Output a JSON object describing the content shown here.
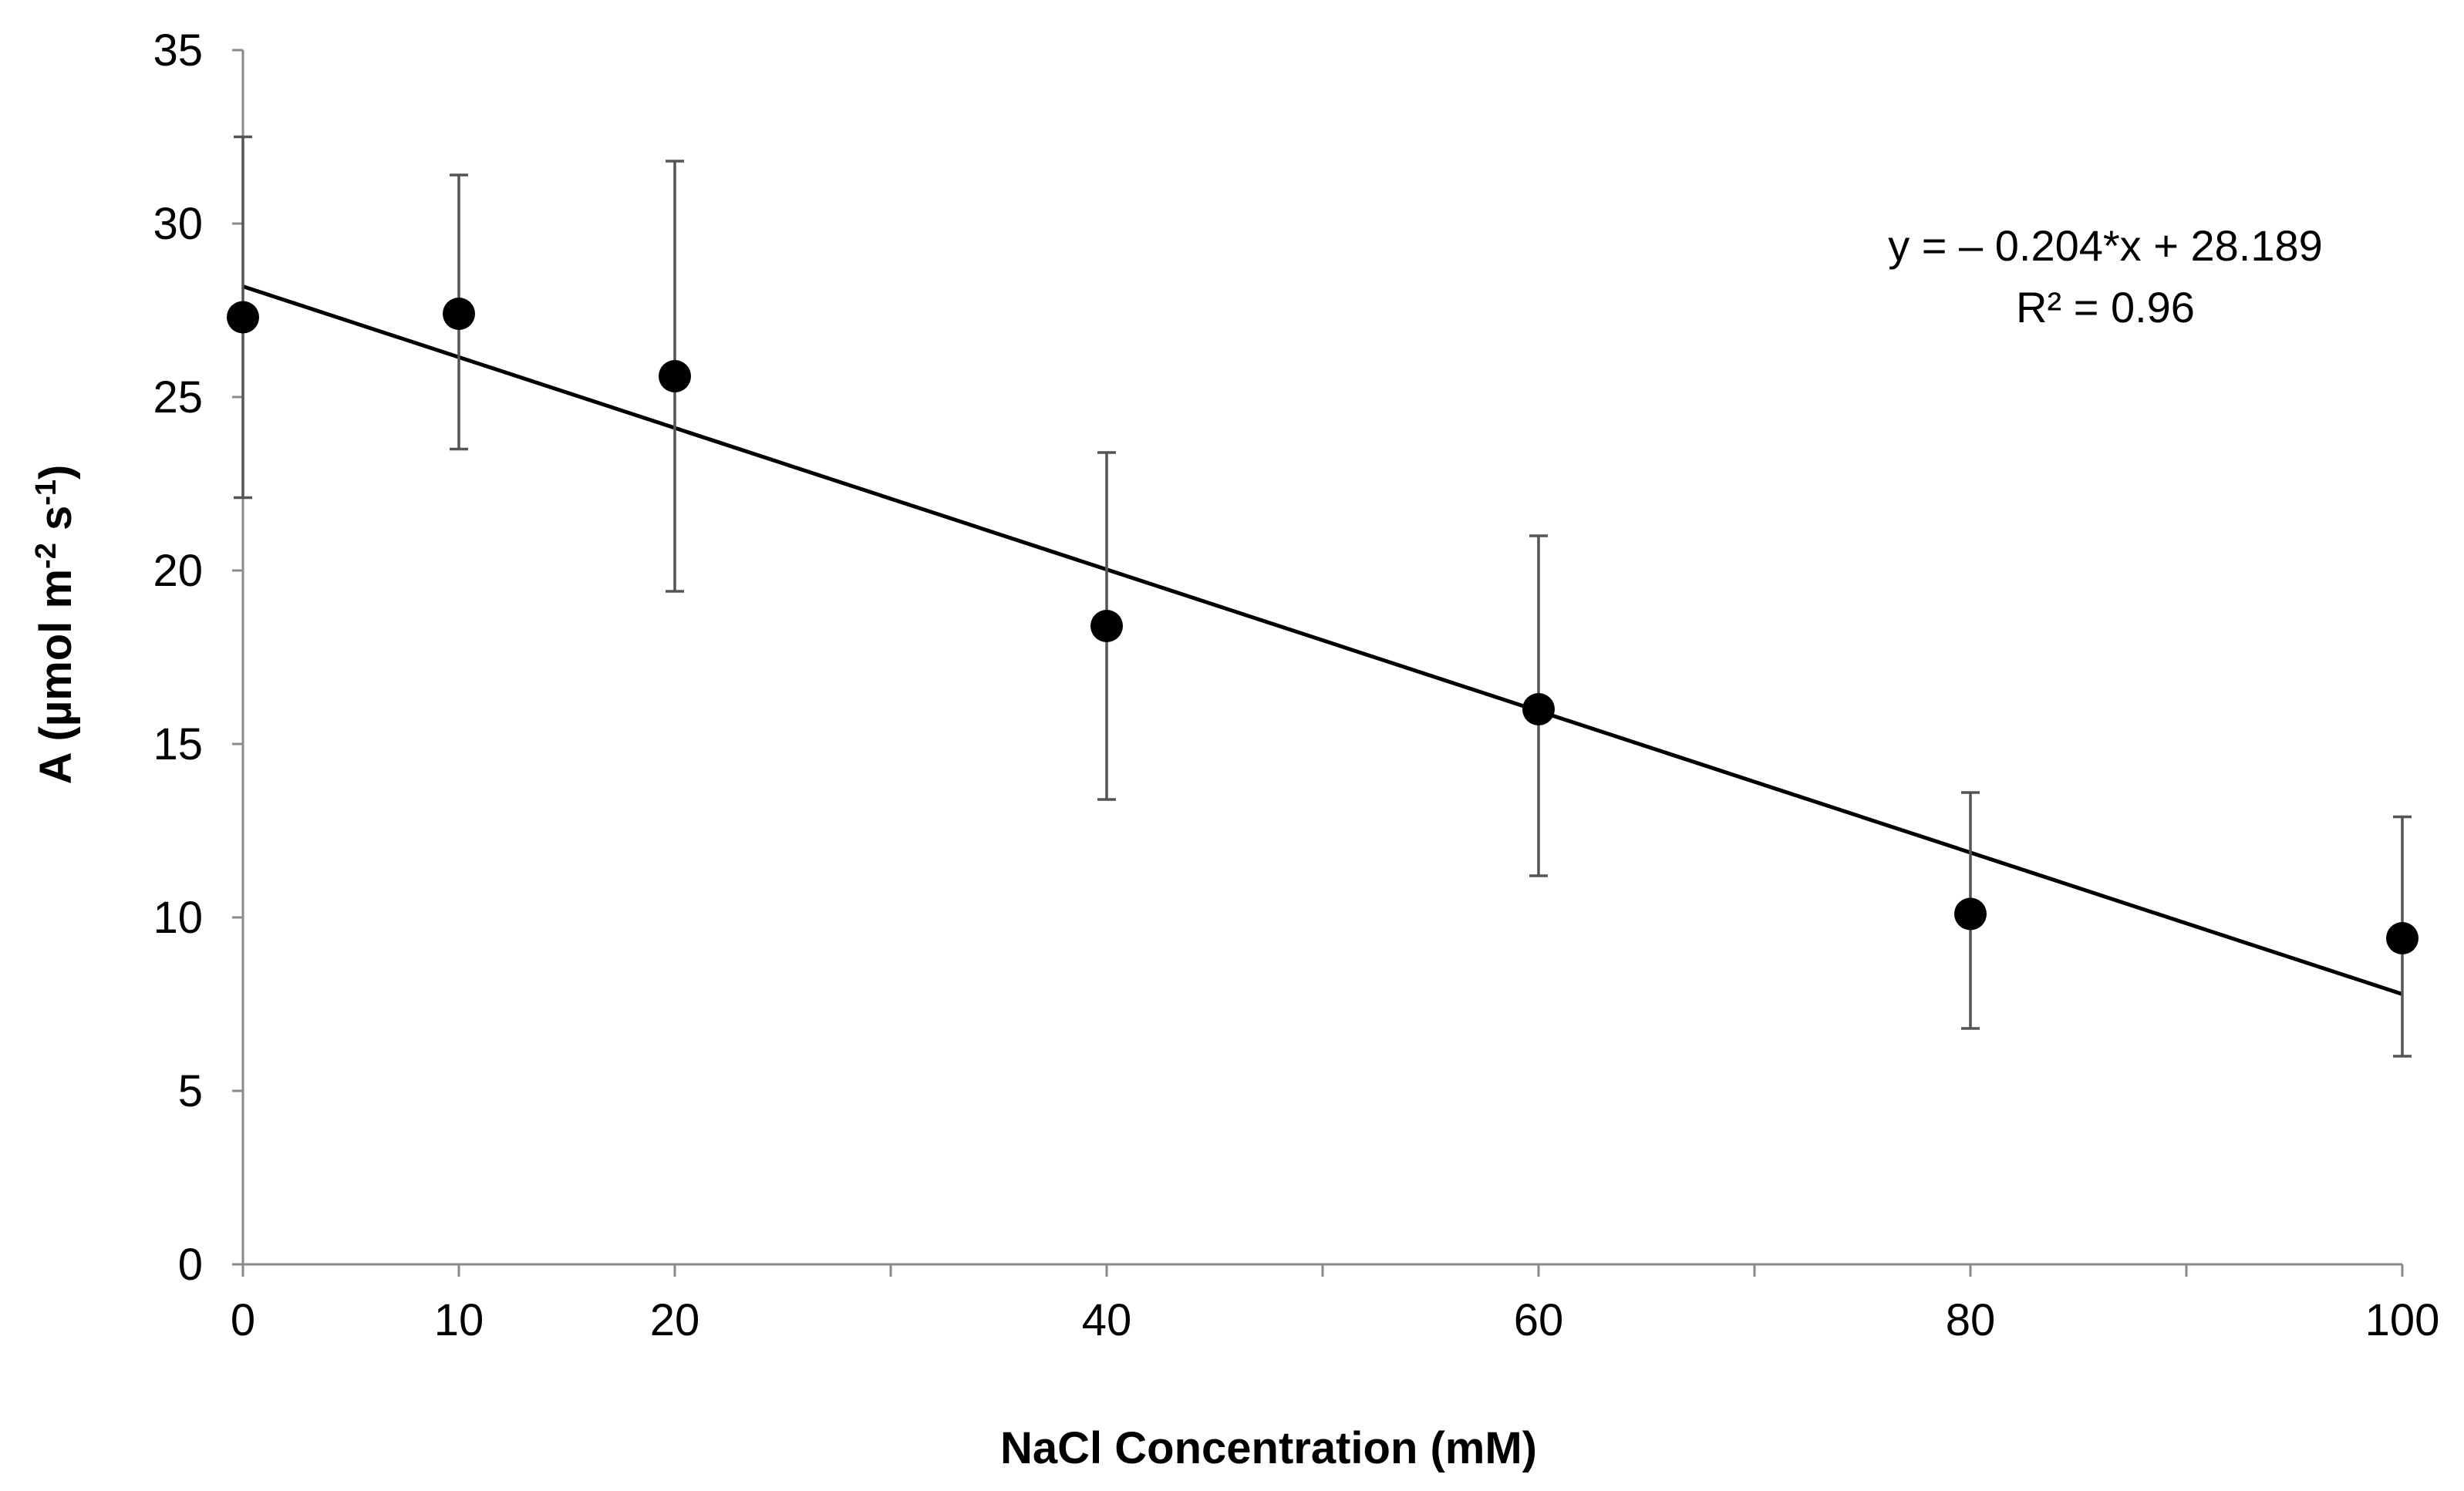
{
  "chart_data": {
    "type": "scatter",
    "title": "",
    "xlabel": "NaCl Concentration (mM)",
    "ylabel_main": "A (µmol m",
    "ylabel_sup1": "-2",
    "ylabel_mid": " s",
    "ylabel_sup2": "-1",
    "ylabel_end": ")",
    "xlim": [
      0,
      100
    ],
    "ylim": [
      0,
      35
    ],
    "x_ticks": [
      0,
      10,
      20,
      40,
      60,
      80,
      100
    ],
    "x_tick_labels": [
      "0",
      "10",
      "20",
      "40",
      "60",
      "80",
      "100"
    ],
    "x_minor_ticks": [
      30,
      50,
      70,
      90
    ],
    "y_ticks": [
      0,
      5,
      10,
      15,
      20,
      25,
      30,
      35
    ],
    "y_tick_labels": [
      "0",
      "5",
      "10",
      "15",
      "20",
      "25",
      "30",
      "35"
    ],
    "grid": false,
    "series": [
      {
        "name": "A",
        "x": [
          0,
          10,
          20,
          40,
          60,
          80,
          100
        ],
        "y": [
          27.3,
          27.4,
          25.6,
          18.4,
          16.0,
          10.1,
          9.4
        ],
        "err_low": [
          22.1,
          23.5,
          19.4,
          13.4,
          11.2,
          6.8,
          6.0
        ],
        "err_high": [
          32.5,
          31.4,
          31.8,
          23.4,
          21.0,
          13.6,
          12.9
        ],
        "marker_color": "#000000"
      }
    ],
    "trendline": {
      "slope": -0.204,
      "intercept": 28.189,
      "x_range": [
        0,
        100
      ],
      "color": "#000000"
    },
    "annotations": {
      "equation": "y = – 0.204*x + 28.189",
      "r_squared": "R² = 0.96"
    }
  }
}
